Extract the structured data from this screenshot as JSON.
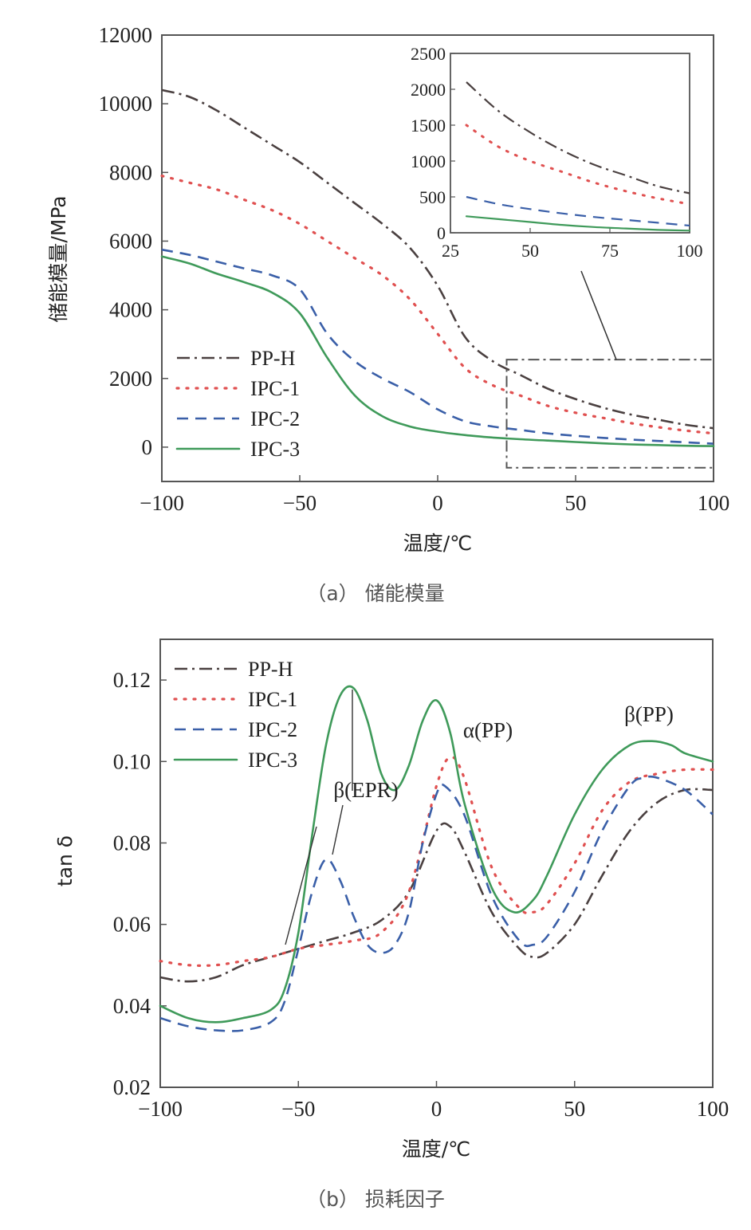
{
  "colors": {
    "PP-H": "#4a4040",
    "IPC-1": "#e05050",
    "IPC-2": "#3a5fa8",
    "IPC-3": "#3f9a5a",
    "frame": "#555555"
  },
  "chart_data": [
    {
      "id": "a",
      "type": "line",
      "caption": "（a） 储能模量",
      "xlabel": "温度/℃",
      "ylabel": "储能模量/MPa",
      "xlim": [
        -100,
        100
      ],
      "ylim": [
        -1000,
        12000
      ],
      "xticks": [
        -100,
        -50,
        0,
        50,
        100
      ],
      "xtick_labels": [
        "−100",
        "−50",
        "0",
        "50",
        "100"
      ],
      "yticks": [
        0,
        2000,
        4000,
        6000,
        8000,
        10000,
        12000
      ],
      "ytick_labels": [
        "0",
        "2000",
        "4000",
        "6000",
        "8000",
        "10000",
        "12000"
      ],
      "legend": [
        "PP-H",
        "IPC-1",
        "IPC-2",
        "IPC-3"
      ],
      "series": [
        {
          "name": "PP-H",
          "x": [
            -100,
            -90,
            -80,
            -70,
            -60,
            -50,
            -40,
            -30,
            -20,
            -10,
            0,
            10,
            20,
            30,
            40,
            50,
            60,
            70,
            80,
            90,
            100
          ],
          "y": [
            10400,
            10200,
            9800,
            9300,
            8800,
            8300,
            7700,
            7100,
            6500,
            5800,
            4700,
            3200,
            2500,
            2100,
            1700,
            1400,
            1150,
            950,
            800,
            650,
            550
          ]
        },
        {
          "name": "IPC-1",
          "x": [
            -100,
            -90,
            -80,
            -70,
            -60,
            -50,
            -40,
            -30,
            -20,
            -10,
            0,
            10,
            20,
            30,
            40,
            50,
            60,
            70,
            80,
            90,
            100
          ],
          "y": [
            7900,
            7700,
            7500,
            7200,
            6900,
            6500,
            6000,
            5500,
            5000,
            4300,
            3300,
            2300,
            1800,
            1500,
            1200,
            1000,
            850,
            700,
            580,
            480,
            400
          ]
        },
        {
          "name": "IPC-2",
          "x": [
            -100,
            -90,
            -80,
            -70,
            -60,
            -50,
            -40,
            -30,
            -20,
            -10,
            0,
            10,
            20,
            30,
            40,
            50,
            60,
            70,
            80,
            90,
            100
          ],
          "y": [
            5750,
            5600,
            5400,
            5200,
            5000,
            4600,
            3300,
            2500,
            2000,
            1600,
            1100,
            750,
            600,
            500,
            400,
            330,
            270,
            220,
            180,
            140,
            100
          ]
        },
        {
          "name": "IPC-3",
          "x": [
            -100,
            -90,
            -80,
            -70,
            -60,
            -50,
            -40,
            -30,
            -20,
            -10,
            0,
            10,
            20,
            30,
            40,
            50,
            60,
            70,
            80,
            90,
            100
          ],
          "y": [
            5550,
            5350,
            5050,
            4800,
            4500,
            3900,
            2600,
            1500,
            900,
            600,
            450,
            350,
            280,
            230,
            190,
            150,
            110,
            80,
            60,
            40,
            30
          ]
        }
      ],
      "inset": {
        "xlim": [
          25,
          100
        ],
        "ylim": [
          0,
          2500
        ],
        "xticks": [
          25,
          50,
          75,
          100
        ],
        "xtick_labels": [
          "25",
          "50",
          "75",
          "100"
        ],
        "yticks": [
          0,
          500,
          1000,
          1500,
          2000,
          2500
        ],
        "ytick_labels": [
          "0",
          "500",
          "1000",
          "1500",
          "2000",
          "2500"
        ]
      },
      "zoom_box": {
        "x": [
          25,
          100
        ],
        "y": [
          -600,
          2550
        ]
      }
    },
    {
      "id": "b",
      "type": "line",
      "caption": "（b） 损耗因子",
      "xlabel": "温度/℃",
      "ylabel": "tan δ",
      "xlim": [
        -100,
        100
      ],
      "ylim": [
        0.02,
        0.13
      ],
      "xticks": [
        -100,
        -50,
        0,
        50,
        100
      ],
      "xtick_labels": [
        "−100",
        "−50",
        "0",
        "50",
        "100"
      ],
      "yticks": [
        0.02,
        0.04,
        0.06,
        0.08,
        0.1,
        0.12
      ],
      "ytick_labels": [
        "0.02",
        "0.04",
        "0.06",
        "0.08",
        "0.10",
        "0.12"
      ],
      "legend": [
        "PP-H",
        "IPC-1",
        "IPC-2",
        "IPC-3"
      ],
      "annotations": [
        "β(EPR)",
        "α(PP)",
        "β(PP)"
      ],
      "series": [
        {
          "name": "PP-H",
          "x": [
            -100,
            -90,
            -80,
            -70,
            -60,
            -50,
            -40,
            -30,
            -20,
            -10,
            0,
            5,
            10,
            20,
            30,
            35,
            40,
            50,
            60,
            70,
            80,
            90,
            100
          ],
          "y": [
            0.047,
            0.046,
            0.047,
            0.05,
            0.052,
            0.054,
            0.056,
            0.058,
            0.061,
            0.068,
            0.083,
            0.084,
            0.078,
            0.063,
            0.054,
            0.052,
            0.053,
            0.06,
            0.072,
            0.083,
            0.09,
            0.093,
            0.093
          ]
        },
        {
          "name": "IPC-1",
          "x": [
            -100,
            -90,
            -80,
            -70,
            -60,
            -50,
            -40,
            -30,
            -20,
            -10,
            0,
            5,
            10,
            20,
            30,
            35,
            40,
            50,
            60,
            70,
            80,
            90,
            100
          ],
          "y": [
            0.051,
            0.05,
            0.05,
            0.051,
            0.052,
            0.054,
            0.055,
            0.056,
            0.058,
            0.068,
            0.094,
            0.101,
            0.096,
            0.074,
            0.064,
            0.063,
            0.065,
            0.075,
            0.088,
            0.095,
            0.097,
            0.098,
            0.098
          ]
        },
        {
          "name": "IPC-2",
          "x": [
            -100,
            -90,
            -80,
            -70,
            -60,
            -55,
            -50,
            -45,
            -40,
            -35,
            -30,
            -25,
            -20,
            -15,
            -10,
            -5,
            0,
            3,
            10,
            20,
            30,
            35,
            40,
            50,
            60,
            70,
            75,
            80,
            90,
            100
          ],
          "y": [
            0.037,
            0.035,
            0.034,
            0.034,
            0.036,
            0.041,
            0.054,
            0.068,
            0.076,
            0.071,
            0.062,
            0.055,
            0.053,
            0.055,
            0.063,
            0.08,
            0.092,
            0.094,
            0.087,
            0.067,
            0.056,
            0.055,
            0.057,
            0.068,
            0.083,
            0.094,
            0.096,
            0.096,
            0.093,
            0.087
          ]
        },
        {
          "name": "IPC-3",
          "x": [
            -100,
            -90,
            -80,
            -70,
            -60,
            -55,
            -50,
            -45,
            -40,
            -35,
            -30,
            -25,
            -20,
            -15,
            -10,
            -5,
            0,
            5,
            10,
            20,
            28,
            35,
            40,
            50,
            60,
            70,
            78,
            85,
            90,
            100
          ],
          "y": [
            0.04,
            0.037,
            0.036,
            0.037,
            0.039,
            0.044,
            0.058,
            0.082,
            0.104,
            0.116,
            0.118,
            0.11,
            0.097,
            0.093,
            0.099,
            0.11,
            0.115,
            0.107,
            0.09,
            0.069,
            0.063,
            0.066,
            0.072,
            0.087,
            0.098,
            0.104,
            0.105,
            0.104,
            0.102,
            0.1
          ]
        }
      ]
    }
  ]
}
